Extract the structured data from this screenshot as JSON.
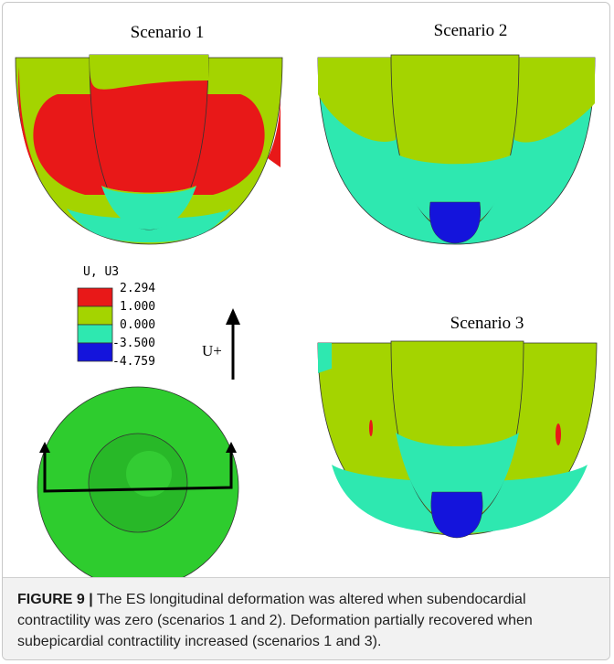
{
  "panels": [
    {
      "title": "Scenario 1"
    },
    {
      "title": "Scenario 2"
    },
    {
      "title": "Scenario 3"
    }
  ],
  "legend": {
    "title": "U, U3",
    "entries": [
      "2.294",
      "1.000",
      "0.000",
      "-3.500",
      "-4.759"
    ]
  },
  "arrow_label": "U+",
  "caption": {
    "label": "FIGURE 9 |",
    "text": "The ES longitudinal deformation was altered when subendocardial contractility was zero (scenarios 1 and 2). Deformation partially recovered when subepicardial contractility increased (scenarios 1 and 3)."
  }
}
